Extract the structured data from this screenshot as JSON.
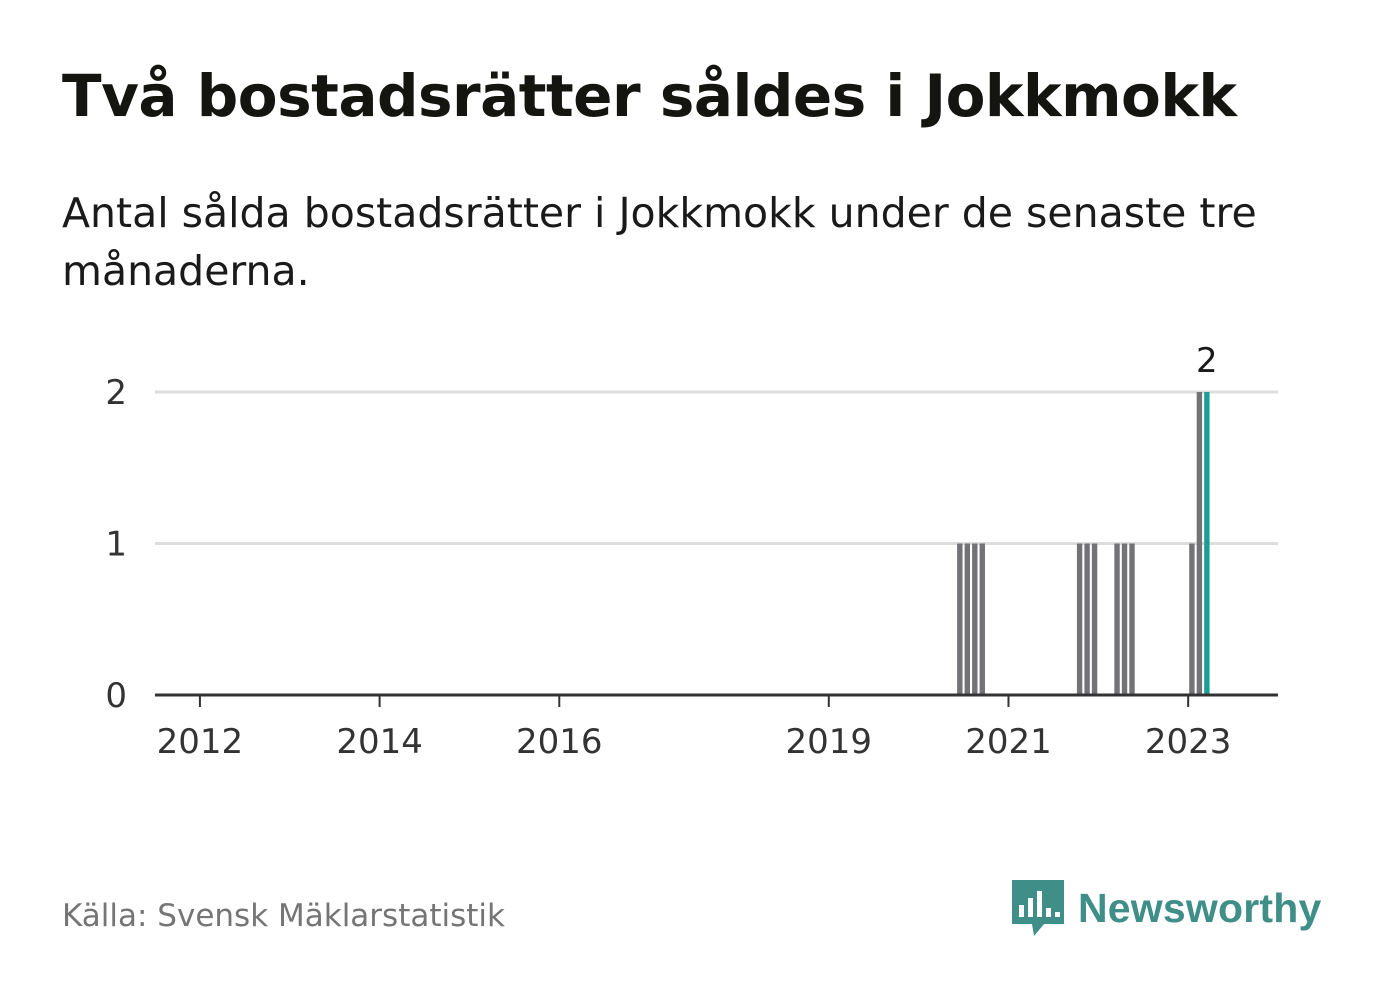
{
  "header": {
    "title": "Två bostadsrätter såldes i Jokkmokk",
    "subtitle": "Antal sålda bostadsrätter i Jokkmokk under de senaste tre månaderna."
  },
  "footer": {
    "source": "Källa: Svensk Mäklarstatistik",
    "brand": "Newsworthy",
    "brand_icon": "bar-chart-speech-bubble-icon"
  },
  "colors": {
    "bar_default": "#737275",
    "bar_highlight": "#1b9e98",
    "gridline": "#dddddd",
    "axis": "#333333",
    "brand": "#3f8e88"
  },
  "chart_data": {
    "type": "bar",
    "title": "",
    "xlabel": "",
    "ylabel": "",
    "ylim": [
      0,
      2
    ],
    "yticks": [
      0,
      1,
      2
    ],
    "grid": true,
    "xlim": [
      "2011-07",
      "2024-01"
    ],
    "xticks": [
      {
        "label": "2012",
        "date": "2012-01"
      },
      {
        "label": "2014",
        "date": "2014-01"
      },
      {
        "label": "2016",
        "date": "2016-01"
      },
      {
        "label": "2019",
        "date": "2019-01"
      },
      {
        "label": "2021",
        "date": "2021-01"
      },
      {
        "label": "2023",
        "date": "2023-01"
      }
    ],
    "series": [
      {
        "points": [
          {
            "date": "2020-06",
            "value": 1
          },
          {
            "date": "2020-07",
            "value": 1
          },
          {
            "date": "2020-08",
            "value": 1
          },
          {
            "date": "2020-09",
            "value": 1
          },
          {
            "date": "2021-10",
            "value": 1
          },
          {
            "date": "2021-11",
            "value": 1
          },
          {
            "date": "2021-12",
            "value": 1
          },
          {
            "date": "2022-03",
            "value": 1
          },
          {
            "date": "2022-04",
            "value": 1
          },
          {
            "date": "2022-05",
            "value": 1
          },
          {
            "date": "2023-01",
            "value": 1
          },
          {
            "date": "2023-02",
            "value": 2
          },
          {
            "date": "2023-03",
            "value": 2,
            "highlight": true,
            "label": "2"
          }
        ]
      }
    ]
  }
}
